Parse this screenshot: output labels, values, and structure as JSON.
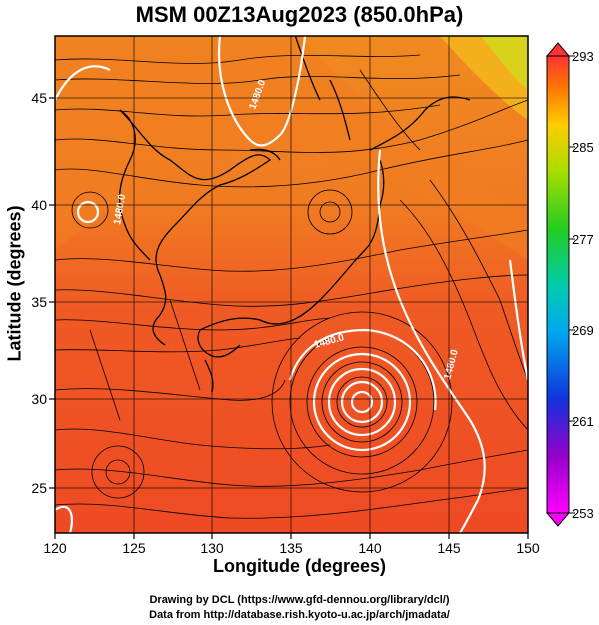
{
  "title": "MSM 00Z13Aug2023 (850.0hPa)",
  "xlabel": "Longitude (degrees)",
  "ylabel": "Latitude  (degrees)",
  "x_ticks": [
    "120",
    "125",
    "130",
    "135",
    "140",
    "145",
    "150"
  ],
  "y_ticks": [
    "25",
    "30",
    "35",
    "40",
    "45"
  ],
  "colorbar": {
    "min": 253,
    "max": 293,
    "ticks": [
      "253",
      "261",
      "269",
      "277",
      "285",
      "293"
    ]
  },
  "contour_labels": [
    "1480.0",
    "1480.0",
    "1480.0",
    "1480.0"
  ],
  "credits": [
    "Drawing by DCL (https://www.gfd-dennou.org/library/dcl/)",
    "Data from http://database.rish.kyoto-u.ac.jp/arch/jmadata/"
  ],
  "colors": {
    "warm_field": "#ef4a22",
    "north_field": "#f08a20",
    "contour": "#ffffff",
    "land_outline": "#000000"
  }
}
